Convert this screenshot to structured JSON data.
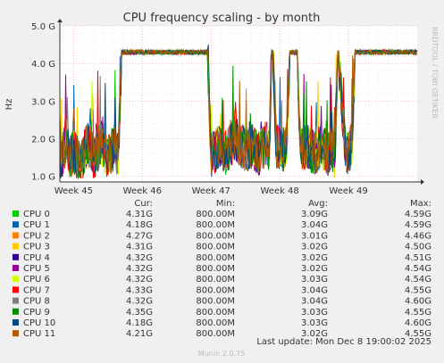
{
  "chart_data": {
    "type": "line",
    "title": "CPU frequency scaling - by month",
    "ylabel": "Hz",
    "watermark": "RRDTOOL / TOBI OETIKER",
    "ylim": [
      0.85,
      5.0
    ],
    "yticks": [
      {
        "value": 1.0,
        "label": "1.0 G"
      },
      {
        "value": 2.0,
        "label": "2.0 G"
      },
      {
        "value": 3.0,
        "label": "3.0 G"
      },
      {
        "value": 4.0,
        "label": "4.0 G"
      },
      {
        "value": 5.0,
        "label": "5.0 G"
      }
    ],
    "xlim": [
      44.8,
      50.0
    ],
    "xticks": [
      {
        "value": 45,
        "label": "Week 45"
      },
      {
        "value": 46,
        "label": "Week 46"
      },
      {
        "value": 47,
        "label": "Week 47"
      },
      {
        "value": 48,
        "label": "Week 48"
      },
      {
        "value": 49,
        "label": "Week 49"
      }
    ],
    "profile": [
      [
        44.8,
        1.5
      ],
      [
        44.85,
        1.6
      ],
      [
        44.9,
        2.0
      ],
      [
        44.95,
        1.5
      ],
      [
        45.0,
        1.7
      ],
      [
        45.1,
        1.3
      ],
      [
        45.2,
        1.9
      ],
      [
        45.3,
        1.5
      ],
      [
        45.4,
        1.9
      ],
      [
        45.5,
        1.5
      ],
      [
        45.6,
        1.8
      ],
      [
        45.65,
        1.5
      ],
      [
        45.7,
        4.3
      ],
      [
        45.75,
        4.25
      ],
      [
        46.0,
        4.3
      ],
      [
        46.3,
        4.28
      ],
      [
        46.6,
        4.3
      ],
      [
        46.8,
        4.3
      ],
      [
        46.95,
        4.3
      ],
      [
        47.0,
        1.5
      ],
      [
        47.1,
        1.8
      ],
      [
        47.2,
        1.6
      ],
      [
        47.35,
        2.0
      ],
      [
        47.5,
        1.7
      ],
      [
        47.6,
        1.8
      ],
      [
        47.7,
        1.6
      ],
      [
        47.8,
        1.9
      ],
      [
        47.85,
        1.7
      ],
      [
        47.88,
        4.3
      ],
      [
        47.9,
        4.3
      ],
      [
        47.95,
        1.8
      ],
      [
        48.05,
        1.7
      ],
      [
        48.1,
        1.9
      ],
      [
        48.15,
        4.3
      ],
      [
        48.25,
        4.3
      ],
      [
        48.3,
        1.7
      ],
      [
        48.4,
        1.8
      ],
      [
        48.5,
        1.6
      ],
      [
        48.6,
        1.8
      ],
      [
        48.7,
        1.6
      ],
      [
        48.75,
        1.8
      ],
      [
        48.8,
        1.5
      ],
      [
        48.85,
        4.3
      ],
      [
        48.9,
        3.0
      ],
      [
        48.95,
        1.8
      ],
      [
        49.0,
        1.6
      ],
      [
        49.05,
        1.9
      ],
      [
        49.1,
        4.3
      ],
      [
        49.3,
        4.3
      ],
      [
        49.5,
        4.3
      ],
      [
        49.7,
        4.3
      ],
      [
        49.9,
        4.3
      ],
      [
        50.0,
        4.3
      ]
    ],
    "series": [
      {
        "name": "CPU 0",
        "color": "#00cc00",
        "cur": "4.31G",
        "min": "800.00M",
        "avg": "3.09G",
        "max": "4.59G"
      },
      {
        "name": "CPU 1",
        "color": "#0066b3",
        "cur": "4.18G",
        "min": "800.00M",
        "avg": "3.04G",
        "max": "4.59G"
      },
      {
        "name": "CPU 2",
        "color": "#ff8000",
        "cur": "4.27G",
        "min": "800.00M",
        "avg": "3.01G",
        "max": "4.46G"
      },
      {
        "name": "CPU 3",
        "color": "#ffcc00",
        "cur": "4.31G",
        "min": "800.00M",
        "avg": "3.02G",
        "max": "4.50G"
      },
      {
        "name": "CPU 4",
        "color": "#330099",
        "cur": "4.32G",
        "min": "800.00M",
        "avg": "3.02G",
        "max": "4.51G"
      },
      {
        "name": "CPU 5",
        "color": "#990099",
        "cur": "4.32G",
        "min": "800.00M",
        "avg": "3.02G",
        "max": "4.54G"
      },
      {
        "name": "CPU 6",
        "color": "#ccff00",
        "cur": "4.32G",
        "min": "800.00M",
        "avg": "3.03G",
        "max": "4.54G"
      },
      {
        "name": "CPU 7",
        "color": "#ff0000",
        "cur": "4.33G",
        "min": "800.00M",
        "avg": "3.04G",
        "max": "4.55G"
      },
      {
        "name": "CPU 8",
        "color": "#808080",
        "cur": "4.32G",
        "min": "800.00M",
        "avg": "3.04G",
        "max": "4.60G"
      },
      {
        "name": "CPU 9",
        "color": "#008f00",
        "cur": "4.35G",
        "min": "800.00M",
        "avg": "3.03G",
        "max": "4.55G"
      },
      {
        "name": "CPU 10",
        "color": "#00487d",
        "cur": "4.18G",
        "min": "800.00M",
        "avg": "3.03G",
        "max": "4.60G"
      },
      {
        "name": "CPU 11",
        "color": "#b35a00",
        "cur": "4.21G",
        "min": "800.00M",
        "avg": "3.02G",
        "max": "4.55G"
      }
    ],
    "legend_headers": {
      "cur": "Cur:",
      "min": "Min:",
      "avg": "Avg:",
      "max": "Max:"
    },
    "last_update": "Last update: Mon Dec  8 19:00:02 2025",
    "footer": "Munin 2.0.75"
  }
}
